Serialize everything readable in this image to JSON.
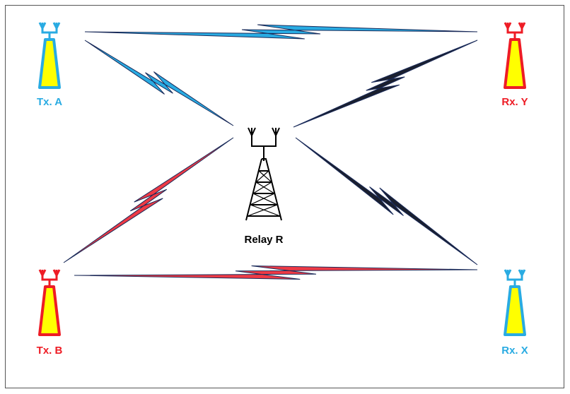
{
  "nodes": [
    {
      "label": "Tx. A"
    },
    {
      "label": "Rx. Y"
    },
    {
      "label": "Relay R"
    },
    {
      "label": "Tx. B"
    },
    {
      "label": "Rx. X"
    }
  ]
}
